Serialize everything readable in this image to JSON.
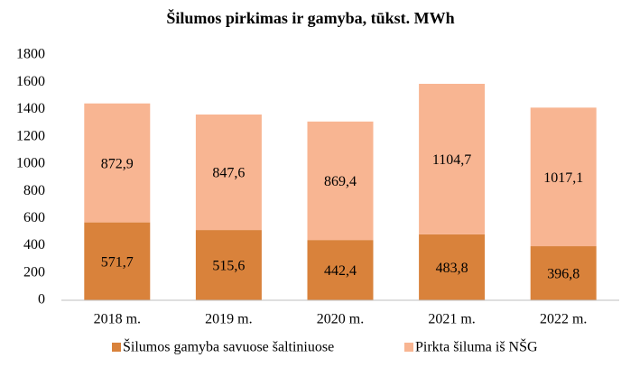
{
  "chart_data": {
    "type": "stacked_bar",
    "title": "Šilumos pirkimas ir gamyba, tūkst. MWh",
    "categories": [
      "2018 m.",
      "2019 m.",
      "2020 m.",
      "2021 m.",
      "2022 m."
    ],
    "series": [
      {
        "name": "Šilumos gamyba savuose šaltiniuose",
        "color": "#d9823b",
        "values": [
          571.7,
          515.6,
          442.4,
          483.8,
          396.8
        ],
        "value_labels": [
          "571,7",
          "515,6",
          "442,4",
          "483,8",
          "396,8"
        ]
      },
      {
        "name": "Pirkta šiluma iš NŠG",
        "color": "#f8b592",
        "values": [
          872.9,
          847.6,
          869.4,
          1104.7,
          1017.1
        ],
        "value_labels": [
          "872,9",
          "847,6",
          "869,4",
          "1104,7",
          "1017,1"
        ]
      }
    ],
    "ylim": [
      0,
      1800
    ],
    "yticks": [
      0,
      200,
      400,
      600,
      800,
      1000,
      1200,
      1400,
      1600,
      1800
    ],
    "grid": false,
    "legend": "bottom"
  }
}
